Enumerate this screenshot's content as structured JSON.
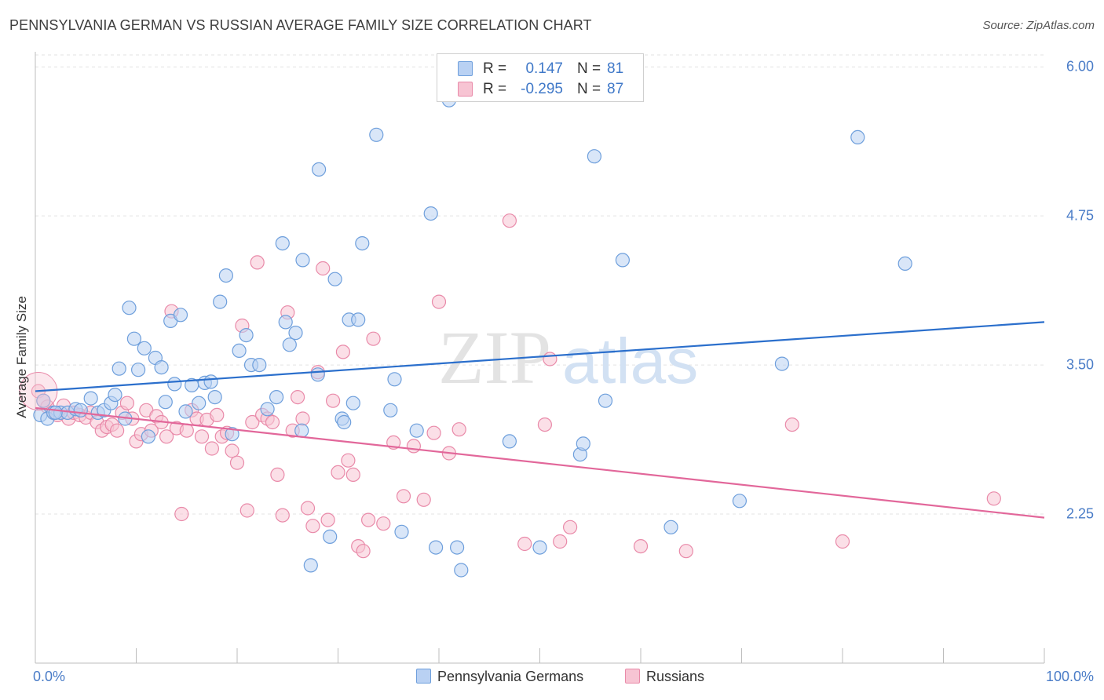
{
  "title": "PENNSYLVANIA GERMAN VS RUSSIAN AVERAGE FAMILY SIZE CORRELATION CHART",
  "source": "Source: ZipAtlas.com",
  "watermark": {
    "zip": "ZIP",
    "atlas": "atlas"
  },
  "colors": {
    "blue_fill": "#b9d1f3",
    "blue_stroke": "#6e9fdc",
    "blue_line": "#2b6fcc",
    "pink_fill": "#f7c4d3",
    "pink_stroke": "#e98aa9",
    "pink_line": "#e2679a",
    "tick_text": "#4a7cc7",
    "grid": "#e3e3e3"
  },
  "stats": {
    "rows": [
      {
        "r_label": "R =",
        "r_value": "0.147",
        "n_label": "N =",
        "n_value": "81"
      },
      {
        "r_label": "R =",
        "r_value": "-0.295",
        "n_label": "N =",
        "n_value": "87"
      }
    ]
  },
  "legend": {
    "blue": "Pennsylvania Germans",
    "pink": "Russians"
  },
  "chart_data": {
    "type": "scatter",
    "title": "PENNSYLVANIA GERMAN VS RUSSIAN AVERAGE FAMILY SIZE CORRELATION CHART",
    "xlabel": "",
    "ylabel": "Average Family Size",
    "xlim": [
      0,
      100
    ],
    "ylim": [
      1.0,
      6.1
    ],
    "x_tick_labels": [
      "0.0%",
      "100.0%"
    ],
    "y_ticks": [
      2.25,
      3.5,
      4.75,
      6.0
    ],
    "y_tick_labels": [
      "2.25",
      "3.50",
      "4.75",
      "6.00"
    ],
    "grid": "horizontal dashed",
    "legend_position": "bottom-center",
    "series": [
      {
        "name": "Pennsylvania Germans",
        "color": "blue",
        "trend": {
          "x": [
            0,
            100
          ],
          "y": [
            3.28,
            3.86
          ]
        },
        "points": [
          [
            0.5,
            3.08
          ],
          [
            1.2,
            3.05
          ],
          [
            1.8,
            3.1
          ],
          [
            2.5,
            3.1
          ],
          [
            3.2,
            3.1
          ],
          [
            4.0,
            3.13
          ],
          [
            4.5,
            3.12
          ],
          [
            5.5,
            3.22
          ],
          [
            6.2,
            3.1
          ],
          [
            6.8,
            3.12
          ],
          [
            7.5,
            3.18
          ],
          [
            7.9,
            3.25
          ],
          [
            8.3,
            3.47
          ],
          [
            8.9,
            3.05
          ],
          [
            9.3,
            3.98
          ],
          [
            9.8,
            3.72
          ],
          [
            10.2,
            3.46
          ],
          [
            10.8,
            3.64
          ],
          [
            11.2,
            2.9
          ],
          [
            11.9,
            3.56
          ],
          [
            12.5,
            3.48
          ],
          [
            12.9,
            3.19
          ],
          [
            13.4,
            3.87
          ],
          [
            13.8,
            3.34
          ],
          [
            14.4,
            3.92
          ],
          [
            14.9,
            3.11
          ],
          [
            15.5,
            3.33
          ],
          [
            16.2,
            3.18
          ],
          [
            16.8,
            3.35
          ],
          [
            17.4,
            3.36
          ],
          [
            17.8,
            3.23
          ],
          [
            18.3,
            4.03
          ],
          [
            18.9,
            4.25
          ],
          [
            19.5,
            2.92
          ],
          [
            20.2,
            3.62
          ],
          [
            20.9,
            3.75
          ],
          [
            21.4,
            3.5
          ],
          [
            22.2,
            3.5
          ],
          [
            23.0,
            3.13
          ],
          [
            23.9,
            3.23
          ],
          [
            24.5,
            4.52
          ],
          [
            24.8,
            3.86
          ],
          [
            25.2,
            3.67
          ],
          [
            25.8,
            3.77
          ],
          [
            26.4,
            2.95
          ],
          [
            26.5,
            4.38
          ],
          [
            27.3,
            1.82
          ],
          [
            28.0,
            3.42
          ],
          [
            28.1,
            5.14
          ],
          [
            29.2,
            2.06
          ],
          [
            29.7,
            4.22
          ],
          [
            30.4,
            3.05
          ],
          [
            30.6,
            3.02
          ],
          [
            31.1,
            3.88
          ],
          [
            31.5,
            3.18
          ],
          [
            32.0,
            3.88
          ],
          [
            32.4,
            4.52
          ],
          [
            33.8,
            5.43
          ],
          [
            35.2,
            3.12
          ],
          [
            35.6,
            3.38
          ],
          [
            36.3,
            2.1
          ],
          [
            37.8,
            2.95
          ],
          [
            39.2,
            4.77
          ],
          [
            39.7,
            1.97
          ],
          [
            41.0,
            5.72
          ],
          [
            41.8,
            1.97
          ],
          [
            42.2,
            1.78
          ],
          [
            47.0,
            2.86
          ],
          [
            50.0,
            1.97
          ],
          [
            54.0,
            2.75
          ],
          [
            54.3,
            2.84
          ],
          [
            55.4,
            5.25
          ],
          [
            56.5,
            3.2
          ],
          [
            58.2,
            4.38
          ],
          [
            63.0,
            2.14
          ],
          [
            69.8,
            2.36
          ],
          [
            74.0,
            3.51
          ],
          [
            81.5,
            5.41
          ],
          [
            86.2,
            4.35
          ],
          [
            0.8,
            3.2
          ],
          [
            2.0,
            3.1
          ]
        ]
      },
      {
        "name": "Russians",
        "color": "pink",
        "trend": {
          "x": [
            0,
            100
          ],
          "y": [
            3.14,
            2.22
          ]
        },
        "points": [
          [
            0.3,
            3.28
          ],
          [
            0.8,
            3.2
          ],
          [
            1.2,
            3.15
          ],
          [
            1.8,
            3.1
          ],
          [
            2.2,
            3.08
          ],
          [
            2.8,
            3.16
          ],
          [
            3.3,
            3.05
          ],
          [
            3.8,
            3.1
          ],
          [
            4.4,
            3.08
          ],
          [
            5.0,
            3.06
          ],
          [
            5.5,
            3.1
          ],
          [
            6.1,
            3.02
          ],
          [
            6.6,
            2.95
          ],
          [
            7.1,
            2.98
          ],
          [
            7.6,
            3.0
          ],
          [
            8.1,
            2.95
          ],
          [
            8.6,
            3.1
          ],
          [
            9.1,
            3.18
          ],
          [
            9.6,
            3.05
          ],
          [
            10.0,
            2.86
          ],
          [
            10.5,
            2.92
          ],
          [
            11.0,
            3.12
          ],
          [
            11.5,
            2.95
          ],
          [
            12.0,
            3.07
          ],
          [
            12.5,
            3.02
          ],
          [
            13.0,
            2.9
          ],
          [
            13.5,
            3.95
          ],
          [
            14.0,
            2.97
          ],
          [
            14.5,
            2.25
          ],
          [
            15.0,
            2.95
          ],
          [
            15.5,
            3.12
          ],
          [
            16.0,
            3.05
          ],
          [
            16.5,
            2.9
          ],
          [
            17.0,
            3.04
          ],
          [
            17.5,
            2.8
          ],
          [
            18.0,
            3.08
          ],
          [
            18.5,
            2.9
          ],
          [
            19.0,
            2.93
          ],
          [
            19.5,
            2.78
          ],
          [
            20.0,
            2.68
          ],
          [
            20.5,
            3.83
          ],
          [
            21.0,
            2.28
          ],
          [
            21.5,
            3.02
          ],
          [
            22.0,
            4.36
          ],
          [
            22.5,
            3.08
          ],
          [
            23.0,
            3.05
          ],
          [
            23.5,
            3.02
          ],
          [
            24.0,
            2.58
          ],
          [
            24.5,
            2.24
          ],
          [
            25.0,
            3.94
          ],
          [
            25.5,
            2.95
          ],
          [
            26.0,
            3.23
          ],
          [
            26.5,
            3.05
          ],
          [
            27.0,
            2.3
          ],
          [
            27.5,
            2.15
          ],
          [
            28.0,
            3.44
          ],
          [
            28.5,
            4.31
          ],
          [
            29.0,
            2.2
          ],
          [
            29.5,
            3.2
          ],
          [
            30.0,
            2.6
          ],
          [
            30.5,
            3.61
          ],
          [
            31.0,
            2.7
          ],
          [
            31.5,
            2.58
          ],
          [
            32.0,
            1.98
          ],
          [
            32.5,
            1.94
          ],
          [
            33.0,
            2.2
          ],
          [
            33.5,
            3.72
          ],
          [
            34.5,
            2.17
          ],
          [
            35.5,
            2.85
          ],
          [
            36.5,
            2.4
          ],
          [
            37.5,
            2.82
          ],
          [
            38.5,
            2.37
          ],
          [
            39.5,
            2.93
          ],
          [
            40.0,
            4.03
          ],
          [
            41.0,
            2.76
          ],
          [
            42.0,
            2.96
          ],
          [
            47.0,
            4.71
          ],
          [
            48.5,
            2.0
          ],
          [
            50.5,
            3.0
          ],
          [
            51.0,
            3.55
          ],
          [
            52.0,
            2.02
          ],
          [
            53.0,
            2.14
          ],
          [
            60.0,
            1.98
          ],
          [
            64.5,
            1.94
          ],
          [
            75.0,
            3.0
          ],
          [
            80.0,
            2.02
          ],
          [
            95.0,
            2.38
          ]
        ]
      }
    ]
  }
}
